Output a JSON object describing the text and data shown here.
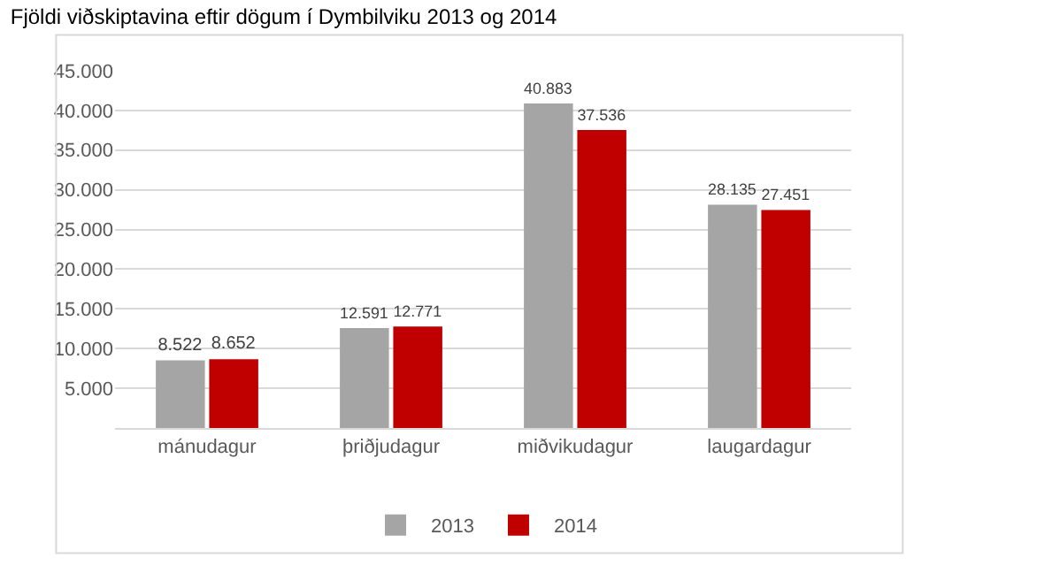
{
  "chart_data": {
    "type": "bar",
    "title": "Fjöldi viðskiptavina eftir dögum í Dymbilviku 2013 og 2014",
    "categories": [
      "mánudagur",
      "þriðjudagur",
      "miðvikudagur",
      "laugardagur"
    ],
    "series": [
      {
        "name": "2013",
        "color": "#a5a5a5",
        "values": [
          8522,
          12591,
          40883,
          28135
        ],
        "value_labels": [
          "8.522",
          "12.591",
          "40.883",
          "28.135"
        ]
      },
      {
        "name": "2014",
        "color": "#c00000",
        "values": [
          8652,
          12771,
          37536,
          27451
        ],
        "value_labels": [
          "8.652",
          "12.771",
          "37.536",
          "27.451"
        ]
      }
    ],
    "ylim": [
      0,
      45000
    ],
    "yticks": [
      {
        "value": 5000,
        "label": "5.000"
      },
      {
        "value": 10000,
        "label": "10.000"
      },
      {
        "value": 15000,
        "label": "15.000"
      },
      {
        "value": 20000,
        "label": "20.000"
      },
      {
        "value": 25000,
        "label": "25.000"
      },
      {
        "value": 30000,
        "label": "30.000"
      },
      {
        "value": 35000,
        "label": "35.000"
      },
      {
        "value": 40000,
        "label": "40.000"
      },
      {
        "value": 45000,
        "label": "45.000"
      }
    ],
    "grid": "y",
    "legend": "bottom"
  }
}
